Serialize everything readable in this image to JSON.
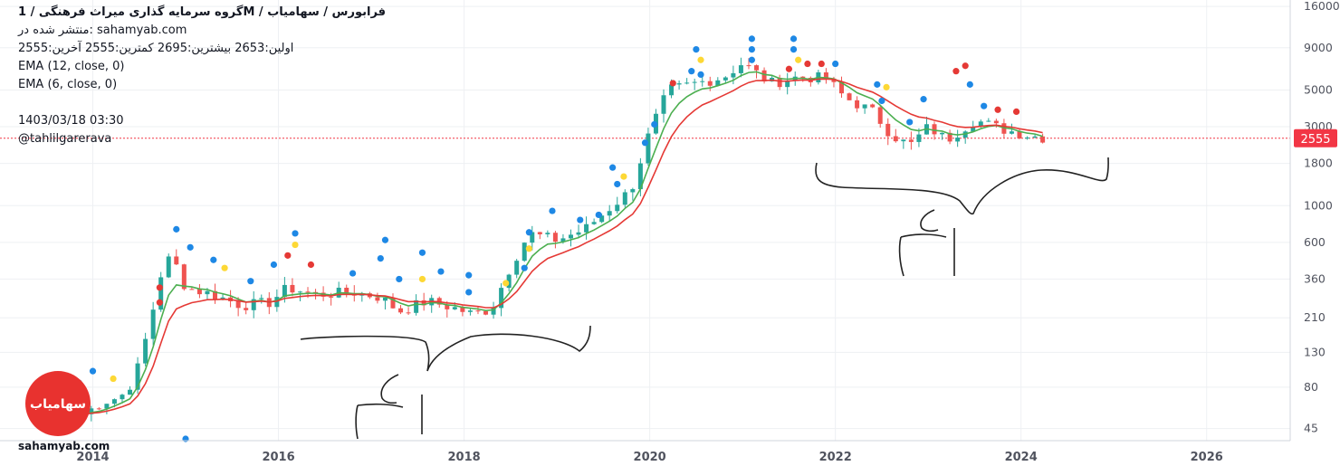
{
  "header": {
    "symbol_line": "گروه سرمایه گذاری میراث فرهنگی /  1M  /  فرابورس / سهامیاب",
    "published_line": "منتشر شده در: sahamyab.com",
    "ohlc_line": "اولین:2653  بیشترین:2695  کمترین:2555  آخرین:2555",
    "ema_fast": "EMA (12, close, 0)",
    "ema_slow": "EMA (6, close, 0)",
    "timestamp": "1403/03/18 03:30",
    "author": "@tahlilgarerava"
  },
  "logo": {
    "word": "sahamyab.com",
    "badge_text": "سهامیاب",
    "badge_color": "#e8322f"
  },
  "colors": {
    "up": "#26a69a",
    "down": "#ef5350",
    "ema_fast": "#4caf50",
    "ema_slow": "#e53935",
    "dot_blue": "#1e88e5",
    "dot_yellow": "#fdd835",
    "dot_red": "#e53935",
    "price_label_bg": "#f23645",
    "drawing": "#222222"
  },
  "chart_data": {
    "type": "candlestick",
    "scale": "log",
    "x_ticks": [
      "2014",
      "2016",
      "2018",
      "2020",
      "2022",
      "2024",
      "2026"
    ],
    "y_ticks": [
      45,
      80,
      130,
      210,
      360,
      600,
      1000,
      1800,
      3000,
      5000,
      9000,
      16000
    ],
    "y_tick_labels": [
      "45",
      "80",
      "130",
      "210",
      "360",
      "600",
      "1000",
      "1800",
      "3000",
      "5000",
      "9000",
      "16000"
    ],
    "xlim": [
      2013.0,
      2026.9
    ],
    "ylim": [
      38,
      17500
    ],
    "last_price": 2555,
    "last_price_label": "2555",
    "series": [
      {
        "name": "EMA (12, close, 0)",
        "color": "#4caf50"
      },
      {
        "name": "EMA (6, close, 0)",
        "color": "#e53935"
      }
    ],
    "anchors": [
      [
        2013.9,
        55
      ],
      [
        2014.1,
        65
      ],
      [
        2014.3,
        70
      ],
      [
        2014.45,
        90
      ],
      [
        2014.6,
        180
      ],
      [
        2014.75,
        420
      ],
      [
        2014.85,
        500
      ],
      [
        2015.0,
        320
      ],
      [
        2015.3,
        290
      ],
      [
        2015.6,
        250
      ],
      [
        2015.9,
        260
      ],
      [
        2016.1,
        320
      ],
      [
        2016.4,
        290
      ],
      [
        2016.8,
        300
      ],
      [
        2017.1,
        280
      ],
      [
        2017.3,
        230
      ],
      [
        2017.6,
        265
      ],
      [
        2017.9,
        240
      ],
      [
        2018.1,
        220
      ],
      [
        2018.3,
        240
      ],
      [
        2018.5,
        430
      ],
      [
        2018.7,
        680
      ],
      [
        2019.0,
        620
      ],
      [
        2019.3,
        720
      ],
      [
        2019.6,
        1000
      ],
      [
        2019.8,
        1250
      ],
      [
        2020.0,
        2800
      ],
      [
        2020.2,
        5000
      ],
      [
        2020.5,
        5500
      ],
      [
        2020.8,
        6000
      ],
      [
        2021.0,
        7300
      ],
      [
        2021.3,
        5500
      ],
      [
        2021.6,
        6000
      ],
      [
        2021.9,
        5900
      ],
      [
        2022.1,
        4500
      ],
      [
        2022.4,
        3700
      ],
      [
        2022.6,
        2700
      ],
      [
        2022.8,
        2300
      ],
      [
        2023.0,
        3000
      ],
      [
        2023.2,
        2500
      ],
      [
        2023.5,
        3300
      ],
      [
        2023.8,
        2900
      ],
      [
        2024.1,
        2650
      ],
      [
        2024.3,
        2555
      ]
    ],
    "markers": [
      {
        "x": 2013.85,
        "y": 85,
        "c": "blue"
      },
      {
        "x": 2014.0,
        "y": 100,
        "c": "blue"
      },
      {
        "x": 2014.22,
        "y": 90,
        "c": "yellow"
      },
      {
        "x": 2014.72,
        "y": 260,
        "c": "red"
      },
      {
        "x": 2014.72,
        "y": 320,
        "c": "red"
      },
      {
        "x": 2014.9,
        "y": 720,
        "c": "blue"
      },
      {
        "x": 2015.05,
        "y": 560,
        "c": "blue"
      },
      {
        "x": 2015.3,
        "y": 470,
        "c": "blue"
      },
      {
        "x": 2015.42,
        "y": 420,
        "c": "yellow"
      },
      {
        "x": 2015.7,
        "y": 350,
        "c": "blue"
      },
      {
        "x": 2015.95,
        "y": 440,
        "c": "blue"
      },
      {
        "x": 2016.1,
        "y": 500,
        "c": "red"
      },
      {
        "x": 2016.18,
        "y": 580,
        "c": "yellow"
      },
      {
        "x": 2016.18,
        "y": 680,
        "c": "blue"
      },
      {
        "x": 2016.35,
        "y": 440,
        "c": "red"
      },
      {
        "x": 2016.8,
        "y": 390,
        "c": "blue"
      },
      {
        "x": 2017.1,
        "y": 480,
        "c": "blue"
      },
      {
        "x": 2017.15,
        "y": 620,
        "c": "blue"
      },
      {
        "x": 2017.3,
        "y": 360,
        "c": "blue"
      },
      {
        "x": 2017.55,
        "y": 520,
        "c": "blue"
      },
      {
        "x": 2017.55,
        "y": 360,
        "c": "yellow"
      },
      {
        "x": 2017.75,
        "y": 400,
        "c": "blue"
      },
      {
        "x": 2018.05,
        "y": 380,
        "c": "blue"
      },
      {
        "x": 2018.05,
        "y": 300,
        "c": "blue"
      },
      {
        "x": 2018.45,
        "y": 340,
        "c": "yellow"
      },
      {
        "x": 2018.65,
        "y": 420,
        "c": "blue"
      },
      {
        "x": 2018.7,
        "y": 550,
        "c": "yellow"
      },
      {
        "x": 2018.7,
        "y": 690,
        "c": "blue"
      },
      {
        "x": 2018.95,
        "y": 930,
        "c": "blue"
      },
      {
        "x": 2019.25,
        "y": 820,
        "c": "blue"
      },
      {
        "x": 2019.45,
        "y": 880,
        "c": "blue"
      },
      {
        "x": 2019.6,
        "y": 1700,
        "c": "blue"
      },
      {
        "x": 2019.65,
        "y": 1350,
        "c": "blue"
      },
      {
        "x": 2019.72,
        "y": 1500,
        "c": "yellow"
      },
      {
        "x": 2019.95,
        "y": 2400,
        "c": "blue"
      },
      {
        "x": 2020.05,
        "y": 3100,
        "c": "blue"
      },
      {
        "x": 2020.25,
        "y": 5500,
        "c": "red"
      },
      {
        "x": 2020.45,
        "y": 6500,
        "c": "blue"
      },
      {
        "x": 2020.5,
        "y": 8800,
        "c": "blue"
      },
      {
        "x": 2020.55,
        "y": 7600,
        "c": "yellow"
      },
      {
        "x": 2020.55,
        "y": 6200,
        "c": "blue"
      },
      {
        "x": 2021.1,
        "y": 10200,
        "c": "blue"
      },
      {
        "x": 2021.1,
        "y": 8800,
        "c": "blue"
      },
      {
        "x": 2021.1,
        "y": 7600,
        "c": "blue"
      },
      {
        "x": 2021.55,
        "y": 10200,
        "c": "blue"
      },
      {
        "x": 2021.55,
        "y": 8800,
        "c": "blue"
      },
      {
        "x": 2021.6,
        "y": 7600,
        "c": "yellow"
      },
      {
        "x": 2021.5,
        "y": 6700,
        "c": "red"
      },
      {
        "x": 2021.7,
        "y": 7200,
        "c": "red"
      },
      {
        "x": 2021.85,
        "y": 7200,
        "c": "red"
      },
      {
        "x": 2022.0,
        "y": 7200,
        "c": "blue"
      },
      {
        "x": 2022.45,
        "y": 5400,
        "c": "blue"
      },
      {
        "x": 2022.55,
        "y": 5200,
        "c": "yellow"
      },
      {
        "x": 2022.5,
        "y": 4300,
        "c": "blue"
      },
      {
        "x": 2022.8,
        "y": 3200,
        "c": "blue"
      },
      {
        "x": 2022.95,
        "y": 4400,
        "c": "blue"
      },
      {
        "x": 2023.3,
        "y": 6500,
        "c": "red"
      },
      {
        "x": 2023.4,
        "y": 7000,
        "c": "red"
      },
      {
        "x": 2023.45,
        "y": 5400,
        "c": "blue"
      },
      {
        "x": 2023.6,
        "y": 4000,
        "c": "blue"
      },
      {
        "x": 2023.75,
        "y": 3800,
        "c": "red"
      },
      {
        "x": 2023.95,
        "y": 3700,
        "c": "red"
      }
    ]
  }
}
